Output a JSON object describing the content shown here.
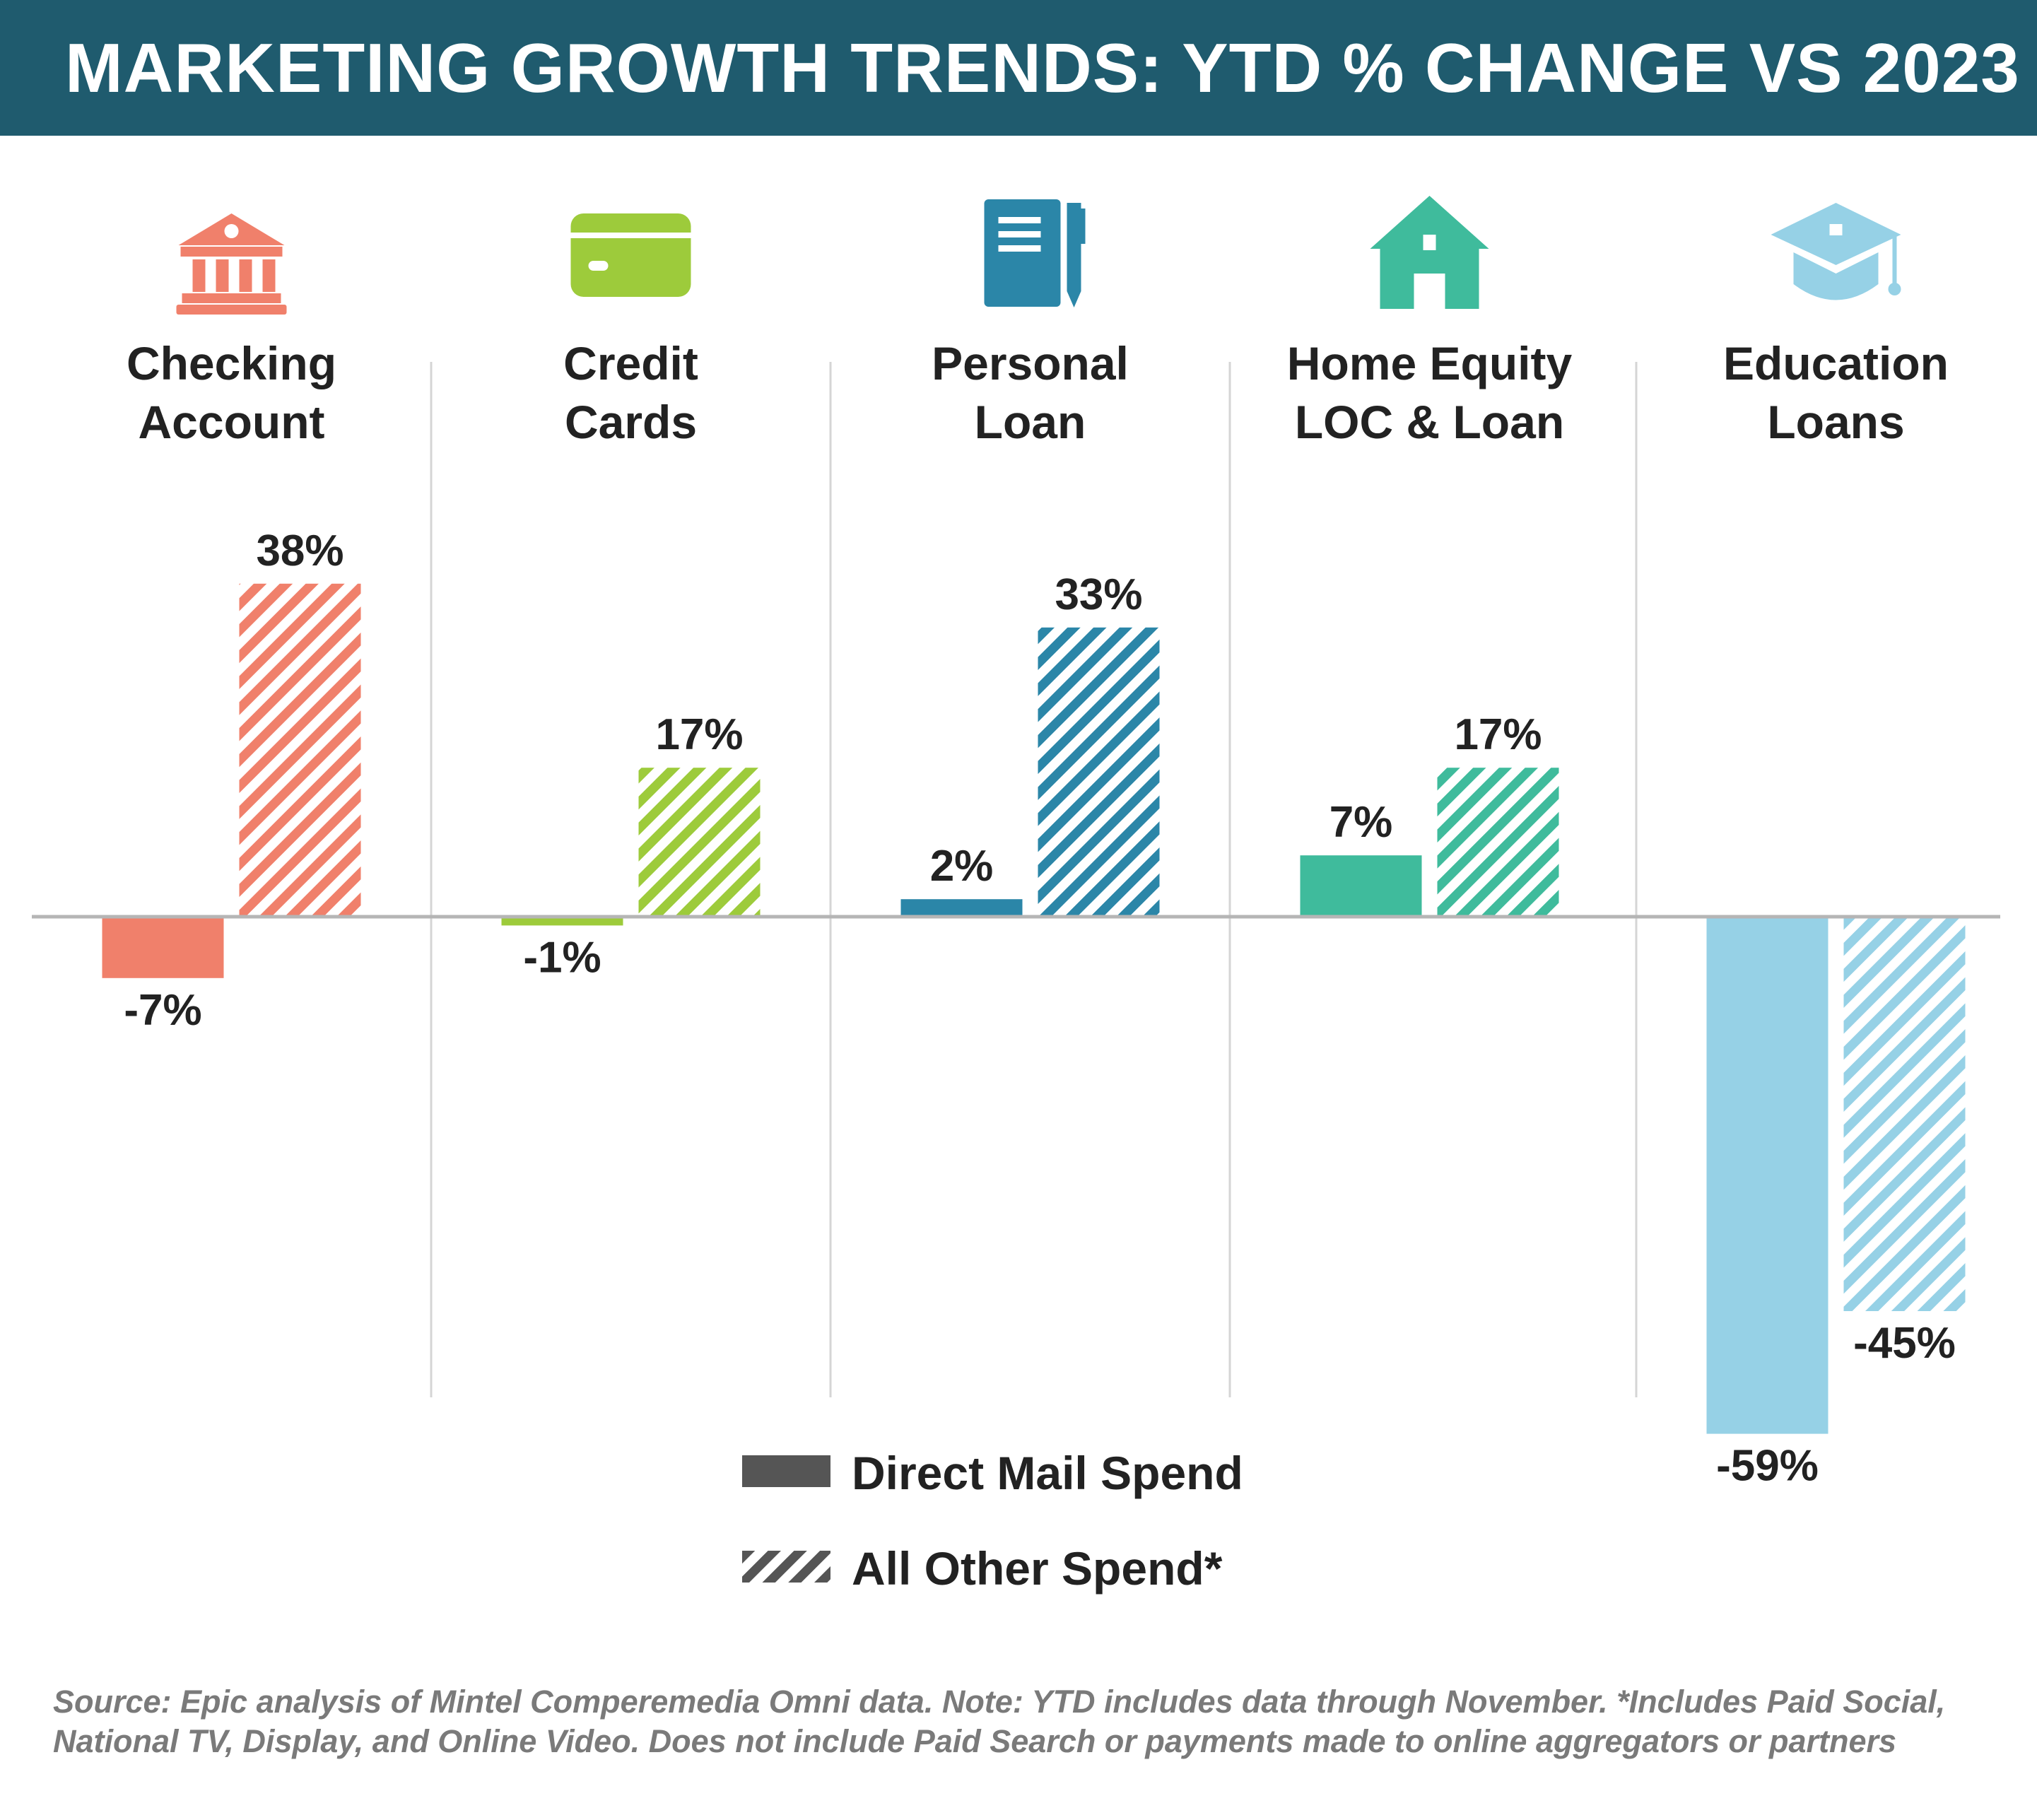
{
  "title": "MARKETING GROWTH TRENDS: YTD % CHANGE VS 2023",
  "chart_data": {
    "type": "bar",
    "title": "MARKETING GROWTH TRENDS: YTD % CHANGE VS 2023",
    "xlabel": "",
    "ylabel": "",
    "categories": [
      {
        "lines": [
          "Checking",
          "Account"
        ],
        "icon": "bank-icon",
        "color": "#f0806b"
      },
      {
        "lines": [
          "Credit",
          "Cards"
        ],
        "icon": "credit-card-icon",
        "color": "#9dcb3b"
      },
      {
        "lines": [
          "Personal",
          "Loan"
        ],
        "icon": "notepad-pen-icon",
        "color": "#2b86a8"
      },
      {
        "lines": [
          "Home Equity",
          "LOC & Loan"
        ],
        "icon": "house-icon",
        "color": "#3fbb9c"
      },
      {
        "lines": [
          "Education",
          "Loans"
        ],
        "icon": "graduation-cap-icon",
        "color": "#96d1e6"
      }
    ],
    "series": [
      {
        "name": "Direct Mail Spend",
        "pattern": "solid",
        "values": [
          -7,
          -1,
          2,
          7,
          -59
        ],
        "labels": [
          "-7%",
          "-1%",
          "2%",
          "7%",
          "-59%"
        ]
      },
      {
        "name": "All Other Spend*",
        "pattern": "hatched",
        "values": [
          38,
          17,
          33,
          17,
          -45
        ],
        "labels": [
          "38%",
          "17%",
          "33%",
          "17%",
          "-45%"
        ]
      }
    ],
    "ylim": [
      -59,
      38
    ],
    "grid": false,
    "legend_placement": "bottom-center",
    "legend_color": "#555555"
  },
  "footnote": {
    "line1": "Source: Epic analysis of Mintel Comperemedia Omni data. Note: YTD includes data through November. *Includes Paid Social,",
    "line2": "National TV, Display, and Online Video. Does not include Paid Search or payments made to online aggregators or partners"
  }
}
